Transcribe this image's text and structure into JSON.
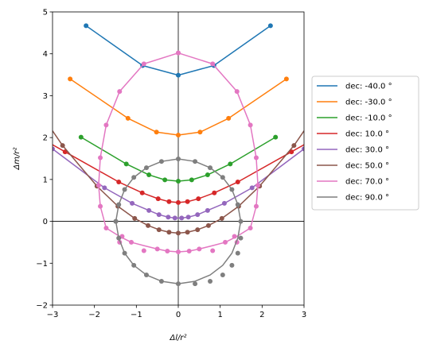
{
  "chart_data": {
    "type": "line",
    "title": "",
    "xlabel": "Δl/r²",
    "ylabel": "Δm/r²",
    "xlim": [
      -3,
      3
    ],
    "ylim": [
      -2,
      5
    ],
    "xticks": [
      "−3",
      "−2",
      "−1",
      "0",
      "1",
      "2",
      "3"
    ],
    "yticks": [
      "−2",
      "−1",
      "0",
      "1",
      "2",
      "3",
      "4",
      "5"
    ],
    "xtick_values": [
      -3,
      -2,
      -1,
      0,
      1,
      2,
      3
    ],
    "ytick_values": [
      -2,
      -1,
      0,
      1,
      2,
      3,
      4,
      5
    ],
    "zero_lines": true,
    "grid": false,
    "legend_position": "right",
    "series": [
      {
        "name": "dec: -40.0 °",
        "color": "#1f77b4",
        "x": [
          -2.2,
          -0.85,
          0,
          0.85,
          2.2
        ],
        "y": [
          4.67,
          3.72,
          3.49,
          3.72,
          4.67
        ],
        "line_x": [
          -2.2,
          -0.85,
          0,
          0.85,
          2.2
        ],
        "line_y": [
          4.67,
          3.72,
          3.49,
          3.72,
          4.67
        ]
      },
      {
        "name": "dec: -30.0 °",
        "color": "#ff7f0e",
        "x": [
          -2.58,
          -1.2,
          -0.52,
          0,
          0.52,
          1.2,
          2.58
        ],
        "y": [
          3.4,
          2.46,
          2.13,
          2.06,
          2.13,
          2.46,
          3.4
        ],
        "line_x": [
          -2.58,
          -1.2,
          -0.52,
          0,
          0.52,
          1.2,
          2.58
        ],
        "line_y": [
          3.4,
          2.46,
          2.13,
          2.06,
          2.13,
          2.46,
          3.4
        ]
      },
      {
        "name": "dec: -10.0 °",
        "color": "#2ca02c",
        "x": [
          -2.32,
          -1.24,
          -0.7,
          -0.32,
          0,
          0.32,
          0.7,
          1.24,
          2.32
        ],
        "y": [
          2.01,
          1.37,
          1.11,
          0.99,
          0.96,
          0.99,
          1.11,
          1.37,
          2.01
        ],
        "line_x": [
          -2.32,
          -1.24,
          -0.7,
          -0.32,
          0,
          0.32,
          0.7,
          1.24,
          2.32
        ],
        "line_y": [
          2.01,
          1.37,
          1.11,
          0.99,
          0.96,
          0.99,
          1.11,
          1.37,
          2.01
        ]
      },
      {
        "name": "dec: 10.0 °",
        "color": "#d62728",
        "x": [
          -2.7,
          -1.42,
          -0.86,
          -0.48,
          -0.22,
          0,
          0.22,
          0.48,
          0.86,
          1.42,
          2.7
        ],
        "y": [
          1.66,
          0.94,
          0.68,
          0.54,
          0.47,
          0.45,
          0.47,
          0.54,
          0.68,
          0.94,
          1.66
        ],
        "line_x": [
          -3,
          -2.7,
          -1.42,
          -0.86,
          -0.48,
          -0.22,
          0,
          0.22,
          0.48,
          0.86,
          1.42,
          2.7,
          3
        ],
        "line_y": [
          1.83,
          1.66,
          0.94,
          0.68,
          0.54,
          0.47,
          0.45,
          0.47,
          0.54,
          0.68,
          0.94,
          1.66,
          1.83
        ]
      },
      {
        "name": "dec: 30.0 °",
        "color": "#9467bd",
        "x": [
          -3.0,
          -1.76,
          -1.1,
          -0.7,
          -0.46,
          -0.24,
          -0.08,
          0.08,
          0.24,
          0.46,
          0.7,
          1.1,
          1.76,
          3.0
        ],
        "y": [
          1.73,
          0.8,
          0.43,
          0.26,
          0.16,
          0.1,
          0.08,
          0.08,
          0.1,
          0.16,
          0.26,
          0.43,
          0.8,
          1.73
        ],
        "line_x": [
          -3,
          -1.76,
          -1.1,
          -0.7,
          -0.46,
          -0.24,
          -0.08,
          0.08,
          0.24,
          0.46,
          0.7,
          1.1,
          1.76,
          3
        ],
        "line_y": [
          1.73,
          0.8,
          0.43,
          0.26,
          0.16,
          0.1,
          0.08,
          0.08,
          0.1,
          0.16,
          0.26,
          0.43,
          0.8,
          1.73
        ]
      },
      {
        "name": "dec: 50.0 °",
        "color": "#8c564b",
        "x": [
          -2.76,
          -1.94,
          -1.44,
          -1.04,
          -0.72,
          -0.46,
          -0.22,
          0,
          0.22,
          0.46,
          0.72,
          1.04,
          1.44,
          1.94,
          2.76
        ],
        "y": [
          1.81,
          0.84,
          0.36,
          0.07,
          -0.1,
          -0.2,
          -0.26,
          -0.28,
          -0.26,
          -0.2,
          -0.1,
          0.07,
          0.36,
          0.84,
          1.81
        ],
        "line_x": [
          -3,
          -2.76,
          -1.94,
          -1.44,
          -1.04,
          -0.72,
          -0.46,
          -0.22,
          0,
          0.22,
          0.46,
          0.72,
          1.04,
          1.44,
          1.94,
          2.76,
          3
        ],
        "line_y": [
          2.16,
          1.81,
          0.84,
          0.36,
          0.07,
          -0.1,
          -0.2,
          -0.26,
          -0.28,
          -0.26,
          -0.2,
          -0.1,
          0.07,
          0.36,
          0.84,
          1.81,
          2.16
        ]
      },
      {
        "name": "dec: 70.0 °",
        "color": "#e377c2",
        "x": [
          0,
          0.82,
          1.4,
          1.72,
          1.86,
          1.9,
          1.86,
          1.72,
          1.4,
          0.82,
          0,
          -0.82,
          -1.4,
          -1.72,
          -1.86,
          -1.9,
          -1.86,
          -1.72,
          -1.4,
          -0.82,
          0,
          -0.5,
          -0.26,
          0.26,
          0.5,
          -1.34,
          -1.12,
          1.12,
          1.34
        ],
        "y": [
          4.02,
          3.76,
          3.1,
          2.3,
          1.52,
          0.86,
          0.36,
          -0.16,
          -0.5,
          -0.7,
          -0.73,
          -0.7,
          -0.5,
          -0.16,
          0.36,
          0.86,
          1.52,
          2.3,
          3.1,
          3.76,
          4.02,
          -0.66,
          -0.71,
          -0.71,
          -0.66,
          -0.36,
          -0.5,
          -0.5,
          -0.36
        ],
        "line_x": [
          0,
          0.82,
          1.4,
          1.72,
          1.86,
          1.9,
          1.86,
          1.72,
          1.4,
          1.12,
          0.82,
          0.5,
          0.26,
          0,
          -0.26,
          -0.5,
          -0.82,
          -1.12,
          -1.4,
          -1.72,
          -1.86,
          -1.9,
          -1.86,
          -1.72,
          -1.4,
          -0.82,
          0
        ],
        "line_y": [
          4.02,
          3.76,
          3.1,
          2.3,
          1.52,
          0.86,
          0.36,
          -0.16,
          -0.36,
          -0.5,
          -0.58,
          -0.66,
          -0.71,
          -0.73,
          -0.71,
          -0.66,
          -0.58,
          -0.5,
          -0.36,
          -0.16,
          0.36,
          0.86,
          1.52,
          2.3,
          3.1,
          3.76,
          4.02
        ]
      },
      {
        "name": "dec: 90.0 °",
        "color": "#7f7f7f",
        "x": [
          0,
          0.4,
          0.76,
          1.06,
          1.28,
          1.42,
          1.49,
          1.49,
          1.42,
          1.28,
          1.06,
          0.76,
          0.4,
          0,
          -0.4,
          -0.76,
          -1.06,
          -1.28,
          -1.42,
          -1.49,
          -1.49,
          -1.42,
          -1.28,
          -1.06,
          -0.76,
          -0.4
        ],
        "y": [
          1.49,
          1.43,
          1.28,
          1.05,
          0.76,
          0.4,
          0.0,
          -0.4,
          -0.76,
          -1.05,
          -1.28,
          -1.43,
          -1.49,
          -1.49,
          -1.43,
          -1.28,
          -1.05,
          -0.76,
          -0.4,
          0.0,
          0.0,
          0.4,
          0.76,
          1.05,
          1.28,
          1.43
        ],
        "line_x": [
          0,
          0.4,
          0.76,
          1.06,
          1.28,
          1.42,
          1.49,
          1.42,
          1.28,
          1.06,
          0.76,
          0.4,
          0,
          -0.4,
          -0.76,
          -1.06,
          -1.28,
          -1.42,
          -1.49,
          -1.42,
          -1.28,
          -1.06,
          -0.76,
          -0.4,
          0
        ],
        "line_y": [
          1.49,
          1.43,
          1.28,
          1.05,
          0.76,
          0.4,
          0.0,
          -0.4,
          -0.76,
          -1.05,
          -1.28,
          -1.43,
          -1.49,
          -1.43,
          -1.28,
          -1.05,
          -0.76,
          -0.4,
          0.0,
          0.4,
          0.76,
          1.05,
          1.28,
          1.43,
          1.49
        ]
      }
    ]
  }
}
